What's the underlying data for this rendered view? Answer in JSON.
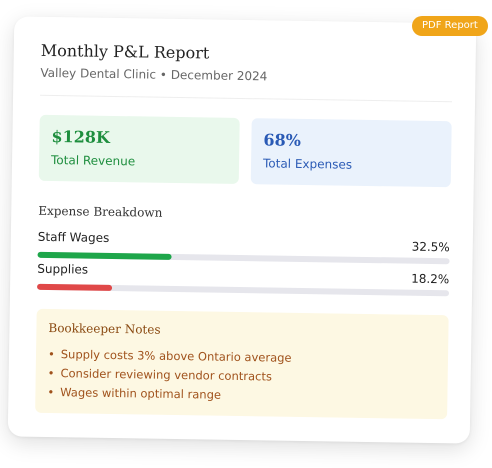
{
  "badge": {
    "label": "PDF Report"
  },
  "report": {
    "title": "Monthly P&L Report",
    "subtitle": "Valley Dental Clinic • December 2024"
  },
  "stats": [
    {
      "value": "$128K",
      "label": "Total Revenue"
    },
    {
      "value": "68%",
      "label": "Total Expenses"
    }
  ],
  "expense_breakdown": {
    "title": "Expense Breakdown",
    "items": [
      {
        "name": "Staff Wages",
        "percent_label": "32.5%",
        "fraction": 0.325,
        "color": "#1ea64a"
      },
      {
        "name": "Supplies",
        "percent_label": "18.2%",
        "fraction": 0.182,
        "color": "#e04848"
      }
    ]
  },
  "notes": {
    "title": "Bookkeeper Notes",
    "items": [
      "Supply costs 3% above Ontario average",
      "Consider reviewing vendor contracts",
      "Wages within optimal range"
    ]
  },
  "colors": {
    "badge": "#f0a519",
    "revenue": "#1e8e3e",
    "expenses": "#2a5ab5",
    "notes_text": "#a0521c"
  }
}
